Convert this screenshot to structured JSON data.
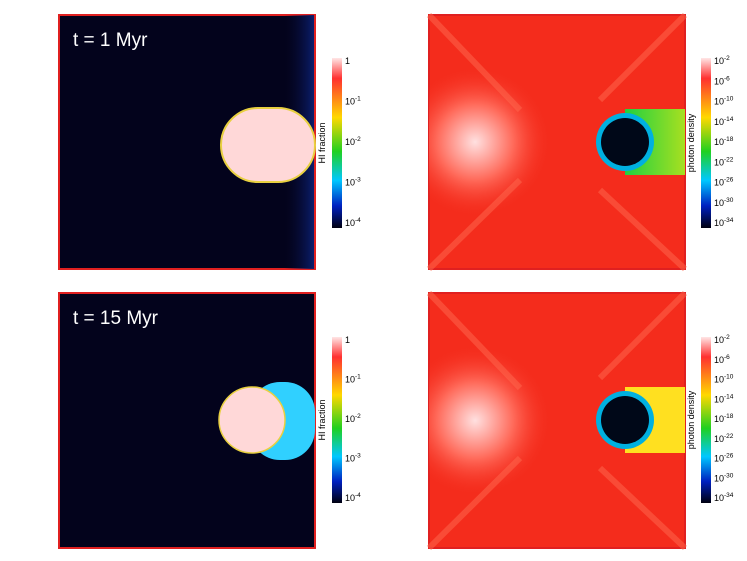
{
  "panels": [
    {
      "label": "t = 1 Myr",
      "colorbar": {
        "title": "HI fraction",
        "ticks": [
          {
            "mantissa": "1"
          },
          {
            "mantissa": "10",
            "exponent": "-1"
          },
          {
            "mantissa": "10",
            "exponent": "-2"
          },
          {
            "mantissa": "10",
            "exponent": "-3"
          },
          {
            "mantissa": "10",
            "exponent": "-4"
          }
        ]
      }
    },
    {
      "colorbar": {
        "title": "photon density",
        "ticks": [
          {
            "mantissa": "10",
            "exponent": "-2"
          },
          {
            "mantissa": "10",
            "exponent": "-6"
          },
          {
            "mantissa": "10",
            "exponent": "-10"
          },
          {
            "mantissa": "10",
            "exponent": "-14"
          },
          {
            "mantissa": "10",
            "exponent": "-18"
          },
          {
            "mantissa": "10",
            "exponent": "-22"
          },
          {
            "mantissa": "10",
            "exponent": "-26"
          },
          {
            "mantissa": "10",
            "exponent": "-30"
          },
          {
            "mantissa": "10",
            "exponent": "-34"
          }
        ]
      }
    },
    {
      "label": "t = 15 Myr",
      "colorbar": {
        "title": "HI fraction",
        "ticks": [
          {
            "mantissa": "1"
          },
          {
            "mantissa": "10",
            "exponent": "-1"
          },
          {
            "mantissa": "10",
            "exponent": "-2"
          },
          {
            "mantissa": "10",
            "exponent": "-3"
          },
          {
            "mantissa": "10",
            "exponent": "-4"
          }
        ]
      }
    },
    {
      "colorbar": {
        "title": "photon density",
        "ticks": [
          {
            "mantissa": "10",
            "exponent": "-2"
          },
          {
            "mantissa": "10",
            "exponent": "-6"
          },
          {
            "mantissa": "10",
            "exponent": "-10"
          },
          {
            "mantissa": "10",
            "exponent": "-14"
          },
          {
            "mantissa": "10",
            "exponent": "-18"
          },
          {
            "mantissa": "10",
            "exponent": "-22"
          },
          {
            "mantissa": "10",
            "exponent": "-26"
          },
          {
            "mantissa": "10",
            "exponent": "-30"
          },
          {
            "mantissa": "10",
            "exponent": "-34"
          }
        ]
      }
    }
  ]
}
